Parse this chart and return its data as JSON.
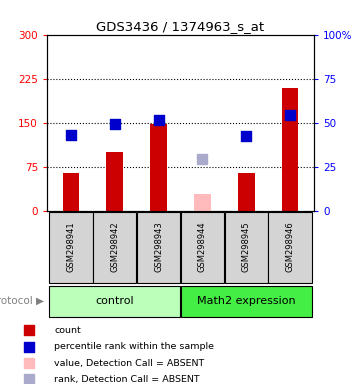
{
  "title": "GDS3436 / 1374963_s_at",
  "samples": [
    "GSM298941",
    "GSM298942",
    "GSM298943",
    "GSM298944",
    "GSM298945",
    "GSM298946"
  ],
  "red_values": [
    65,
    100,
    148,
    null,
    65,
    210
  ],
  "blue_squares_left": [
    130,
    148,
    155,
    null,
    128,
    163
  ],
  "pink_bar": [
    null,
    null,
    null,
    30,
    null,
    null
  ],
  "lightblue_square_left": [
    null,
    null,
    null,
    88,
    null,
    null
  ],
  "ylim_left": [
    0,
    300
  ],
  "ylim_right": [
    0,
    100
  ],
  "yticks_left": [
    0,
    75,
    150,
    225,
    300
  ],
  "yticks_right": [
    0,
    25,
    50,
    75,
    100
  ],
  "dotted_lines": [
    75,
    150,
    225
  ],
  "bar_bg_color": "#d4d4d4",
  "red_bar_color": "#cc0000",
  "blue_sq_color": "#0000cc",
  "pink_bar_color": "#ffbbbb",
  "lightblue_sq_color": "#aaaacc",
  "control_color": "#bbffbb",
  "math2_color": "#44ee44",
  "group1_label": "control",
  "group2_label": "Math2 expression",
  "protocol_label": "protocol",
  "legend_items": [
    {
      "color": "#cc0000",
      "label": "count",
      "marker": "s"
    },
    {
      "color": "#0000cc",
      "label": "percentile rank within the sample",
      "marker": "s"
    },
    {
      "color": "#ffbbbb",
      "label": "value, Detection Call = ABSENT",
      "marker": "s"
    },
    {
      "color": "#aaaacc",
      "label": "rank, Detection Call = ABSENT",
      "marker": "s"
    }
  ]
}
